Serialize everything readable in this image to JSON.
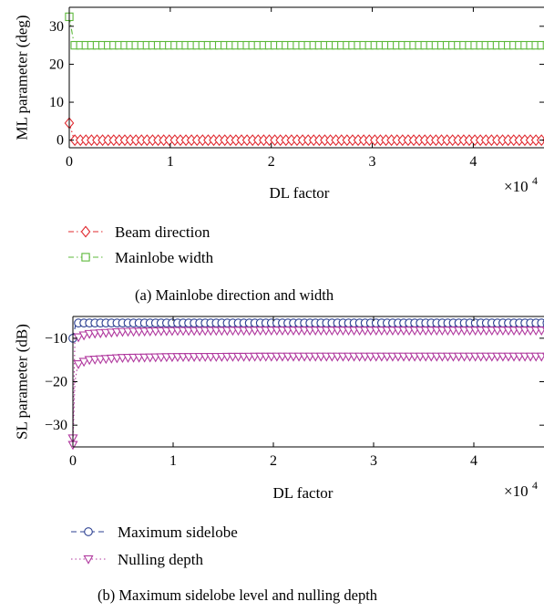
{
  "chart_data": [
    {
      "type": "line",
      "caption": "(a)  Mainlobe direction and width",
      "xlabel": "DL factor",
      "ylabel": "ML parameter (deg)",
      "x_multiplier": "×10",
      "x_multiplier_exp": "4",
      "xlim": [
        0,
        4.7
      ],
      "ylim": [
        -2,
        35
      ],
      "xticks": [
        0,
        1,
        2,
        3,
        4
      ],
      "yticks": [
        0,
        10,
        20,
        30
      ],
      "grid": false,
      "legend_position": "below",
      "series": [
        {
          "name": "Beam direction",
          "color": "#e0282e",
          "marker": "diamond",
          "line": "dashdot",
          "x": [
            0,
            0.05,
            0.1,
            4.7
          ],
          "y": [
            4.5,
            0,
            0,
            0
          ]
        },
        {
          "name": "Mainlobe width",
          "color": "#5cb83a",
          "marker": "square",
          "line": "dashdot",
          "x": [
            0,
            0.05,
            0.1,
            4.7
          ],
          "y": [
            32.5,
            25,
            25,
            25
          ]
        }
      ]
    },
    {
      "type": "line",
      "caption": "(b)  Maximum sidelobe level and nulling depth",
      "xlabel": "DL factor",
      "ylabel": "SL parameter (dB)",
      "x_multiplier": "×10",
      "x_multiplier_exp": "4",
      "xlim": [
        0,
        4.7
      ],
      "ylim": [
        -35,
        -5
      ],
      "xticks": [
        0,
        1,
        2,
        3,
        4
      ],
      "yticks": [
        -10,
        -20,
        -30
      ],
      "grid": false,
      "legend_position": "below",
      "series": [
        {
          "name": "Maximum sidelobe",
          "color": "#2b3f91",
          "marker": "circle",
          "line": "dashed",
          "x": [
            0,
            0.03,
            0.06,
            4.7
          ],
          "y": [
            -10,
            -6.5,
            -6.5,
            -6.5
          ]
        },
        {
          "name": "Nulling depth",
          "color": "#b0389e",
          "marker": "triangle-down",
          "line": "dotted",
          "x": [
            0,
            0.02,
            0.05,
            0.15,
            0.5,
            1,
            2,
            3,
            4,
            4.7
          ],
          "y": [
            -33,
            -10,
            -9.8,
            -9,
            -8.5,
            -8.3,
            -8.2,
            -8.2,
            -8.2,
            -8.2
          ]
        },
        {
          "name": "",
          "color": "#b0389e",
          "marker": "triangle-down",
          "line": "dotted",
          "x": [
            0,
            0.02,
            0.05,
            0.15,
            0.5,
            1,
            2,
            3,
            4,
            4.7
          ],
          "y": [
            -34.5,
            -20,
            -16,
            -15,
            -14.5,
            -14.3,
            -14.2,
            -14.2,
            -14.2,
            -14.2
          ]
        }
      ]
    }
  ]
}
